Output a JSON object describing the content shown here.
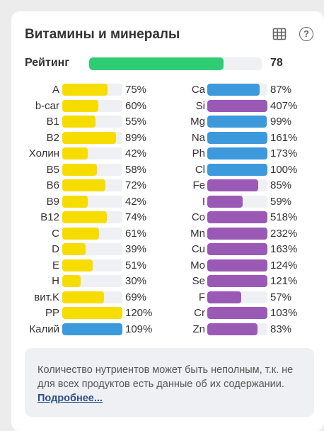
{
  "title": "Витамины и минералы",
  "icons": {
    "table": "table-icon",
    "help": "help-circle-icon"
  },
  "help_glyph": "?",
  "rating": {
    "label": "Рейтинг",
    "value": "78",
    "fill_fraction": 0.78,
    "color": "#2fcd73"
  },
  "colors": {
    "yellow": "#f7dc00",
    "blue": "#3b99dc",
    "purple": "#9b59b6"
  },
  "vitamins": [
    {
      "name": "A",
      "pct": "75%",
      "value": 75,
      "color": "yellow"
    },
    {
      "name": "b-car",
      "pct": "60%",
      "value": 60,
      "color": "yellow"
    },
    {
      "name": "B1",
      "pct": "55%",
      "value": 55,
      "color": "yellow"
    },
    {
      "name": "B2",
      "pct": "89%",
      "value": 89,
      "color": "yellow"
    },
    {
      "name": "Холин",
      "pct": "42%",
      "value": 42,
      "color": "yellow"
    },
    {
      "name": "B5",
      "pct": "58%",
      "value": 58,
      "color": "yellow"
    },
    {
      "name": "B6",
      "pct": "72%",
      "value": 72,
      "color": "yellow"
    },
    {
      "name": "B9",
      "pct": "42%",
      "value": 42,
      "color": "yellow"
    },
    {
      "name": "B12",
      "pct": "74%",
      "value": 74,
      "color": "yellow"
    },
    {
      "name": "C",
      "pct": "61%",
      "value": 61,
      "color": "yellow"
    },
    {
      "name": "D",
      "pct": "39%",
      "value": 39,
      "color": "yellow"
    },
    {
      "name": "E",
      "pct": "51%",
      "value": 51,
      "color": "yellow"
    },
    {
      "name": "H",
      "pct": "30%",
      "value": 30,
      "color": "yellow"
    },
    {
      "name": "вит.K",
      "pct": "69%",
      "value": 69,
      "color": "yellow"
    },
    {
      "name": "PP",
      "pct": "120%",
      "value": 120,
      "color": "yellow"
    },
    {
      "name": "Калий",
      "pct": "109%",
      "value": 109,
      "color": "blue"
    }
  ],
  "minerals": [
    {
      "name": "Ca",
      "pct": "87%",
      "value": 87,
      "color": "blue"
    },
    {
      "name": "Si",
      "pct": "407%",
      "value": 407,
      "color": "purple"
    },
    {
      "name": "Mg",
      "pct": "99%",
      "value": 99,
      "color": "blue"
    },
    {
      "name": "Na",
      "pct": "161%",
      "value": 161,
      "color": "blue"
    },
    {
      "name": "Ph",
      "pct": "173%",
      "value": 173,
      "color": "blue"
    },
    {
      "name": "Cl",
      "pct": "100%",
      "value": 100,
      "color": "blue"
    },
    {
      "name": "Fe",
      "pct": "85%",
      "value": 85,
      "color": "purple"
    },
    {
      "name": "I",
      "pct": "59%",
      "value": 59,
      "color": "purple"
    },
    {
      "name": "Co",
      "pct": "518%",
      "value": 518,
      "color": "purple"
    },
    {
      "name": "Mn",
      "pct": "232%",
      "value": 232,
      "color": "purple"
    },
    {
      "name": "Cu",
      "pct": "163%",
      "value": 163,
      "color": "purple"
    },
    {
      "name": "Mo",
      "pct": "124%",
      "value": 124,
      "color": "purple"
    },
    {
      "name": "Se",
      "pct": "121%",
      "value": 121,
      "color": "purple"
    },
    {
      "name": "F",
      "pct": "57%",
      "value": 57,
      "color": "purple"
    },
    {
      "name": "Cr",
      "pct": "103%",
      "value": 103,
      "color": "purple"
    },
    {
      "name": "Zn",
      "pct": "83%",
      "value": 83,
      "color": "purple"
    }
  ],
  "note": {
    "text": "Количество нутриентов может быть неполным, т.к. не для всех продуктов есть данные об их содержании.",
    "link": "Подробнее..."
  }
}
